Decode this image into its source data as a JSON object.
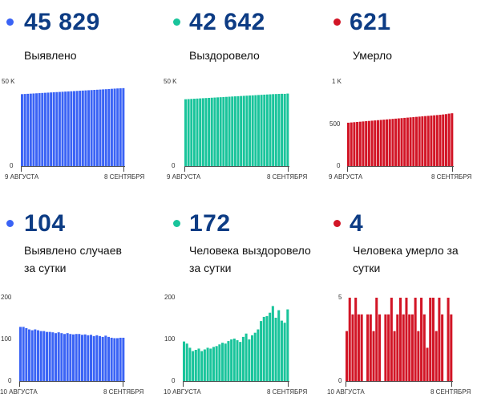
{
  "colors": {
    "blue": "#3a63f5",
    "teal": "#19c49b",
    "red": "#d21526",
    "number": "#0d3c84"
  },
  "panels": [
    {
      "id": "p1",
      "color": "#3a63f5",
      "big": "45 829",
      "label": "Выявлено",
      "ytop": "50 K",
      "ybottom": "0",
      "xstart": "9 АВГУСТА",
      "xend": "8 СЕНТЯБРЯ"
    },
    {
      "id": "p2",
      "color": "#19c49b",
      "big": "42 642",
      "label": "Выздоровело",
      "ytop": "50 K",
      "ybottom": "0",
      "xstart": "9 АВГУСТА",
      "xend": "8 СЕНТЯБРЯ"
    },
    {
      "id": "p3",
      "color": "#d21526",
      "big": "621",
      "label": "Умерло",
      "ytop": "1 K",
      "ymid": "500",
      "ybottom": "0",
      "xstart": "9 АВГУСТА",
      "xend": "8 СЕНТЯБРЯ"
    },
    {
      "id": "p4",
      "color": "#3a63f5",
      "big": "104",
      "label": "Выявлено случаев за сутки",
      "ytop": "200",
      "ymid": "100",
      "ybottom": "0",
      "xstart": "10 АВГУСТА",
      "xend": "8 СЕНТЯБРЯ"
    },
    {
      "id": "p5",
      "color": "#19c49b",
      "big": "172",
      "label": "Человека выздоровело за сутки",
      "ytop": "200",
      "ymid": "100",
      "ybottom": "0",
      "xstart": "10 АВГУСТА",
      "xend": "8 СЕНТЯБРЯ"
    },
    {
      "id": "p6",
      "color": "#d21526",
      "big": "4",
      "label": "Человека умерло за сутки",
      "ytop": "5",
      "ybottom": "0",
      "xstart": "10 АВГУСТА",
      "xend": "8 СЕНТЯБРЯ"
    }
  ],
  "chart_data": [
    {
      "type": "bar",
      "title": "Выявлено",
      "ylim": [
        0,
        50000
      ],
      "color": "#3a63f5",
      "values": [
        42300,
        42400,
        42500,
        42600,
        42700,
        42800,
        42900,
        43000,
        43100,
        43200,
        43300,
        43400,
        43500,
        43600,
        43700,
        43800,
        43900,
        44000,
        44100,
        44200,
        44300,
        44400,
        44500,
        44600,
        44700,
        44800,
        44900,
        45000,
        45100,
        45200,
        45300,
        45450,
        45550,
        45650,
        45729,
        45829
      ]
    },
    {
      "type": "bar",
      "title": "Выздоровело",
      "ylim": [
        0,
        50000
      ],
      "color": "#19c49b",
      "values": [
        39300,
        39400,
        39500,
        39600,
        39700,
        39800,
        39900,
        40000,
        40100,
        40200,
        40300,
        40400,
        40500,
        40600,
        40700,
        40800,
        40900,
        41000,
        41100,
        41200,
        41300,
        41400,
        41500,
        41600,
        41700,
        41800,
        41900,
        42000,
        42100,
        42200,
        42300,
        42370,
        42440,
        42510,
        42470,
        42642
      ]
    },
    {
      "type": "bar",
      "title": "Умерло",
      "ylim": [
        0,
        1000
      ],
      "color": "#d21526",
      "values": [
        510,
        513,
        516,
        519,
        522,
        525,
        528,
        531,
        534,
        537,
        540,
        543,
        546,
        549,
        552,
        555,
        558,
        561,
        564,
        567,
        570,
        573,
        576,
        579,
        582,
        585,
        588,
        591,
        594,
        597,
        600,
        603,
        607,
        611,
        617,
        621
      ]
    },
    {
      "type": "bar",
      "title": "Выявлено случаев за сутки",
      "ylim": [
        0,
        200
      ],
      "color": "#3a63f5",
      "values": [
        130,
        130,
        127,
        124,
        122,
        124,
        122,
        120,
        120,
        118,
        118,
        117,
        115,
        117,
        115,
        113,
        115,
        113,
        112,
        113,
        113,
        111,
        112,
        110,
        111,
        108,
        110,
        108,
        106,
        109,
        106,
        104,
        103,
        103,
        104,
        104
      ]
    },
    {
      "type": "bar",
      "title": "Человека выздоровело за сутки",
      "ylim": [
        0,
        200
      ],
      "color": "#19c49b",
      "values": [
        95,
        90,
        80,
        72,
        75,
        78,
        72,
        76,
        80,
        78,
        82,
        84,
        88,
        92,
        90,
        96,
        100,
        102,
        98,
        94,
        106,
        114,
        100,
        110,
        116,
        124,
        144,
        154,
        156,
        164,
        180,
        152,
        170,
        145,
        140,
        172
      ]
    },
    {
      "type": "bar",
      "title": "Человека умерло за сутки",
      "ylim": [
        0,
        5
      ],
      "color": "#d21526",
      "values": [
        3,
        5,
        4,
        5,
        4,
        4,
        0,
        4,
        4,
        3,
        5,
        4,
        0,
        4,
        4,
        5,
        3,
        4,
        5,
        4,
        5,
        4,
        4,
        5,
        3,
        5,
        4,
        2,
        5,
        5,
        3,
        5,
        4,
        0,
        5,
        4
      ]
    }
  ]
}
